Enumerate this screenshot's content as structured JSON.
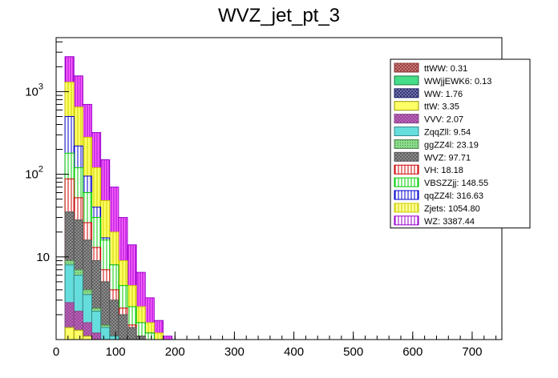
{
  "chart_data": {
    "type": "bar",
    "stacked": true,
    "title": "WVZ_jet_pt_3",
    "xlabel": "",
    "ylabel": "",
    "x_scale": "linear",
    "y_scale": "log",
    "xlim": [
      0,
      750
    ],
    "ylim": [
      1,
      4500
    ],
    "grid": false,
    "legend_position": "top-right",
    "x_ticks": [
      0,
      100,
      200,
      300,
      400,
      500,
      600,
      700
    ],
    "x_tick_labels": [
      "0",
      "100",
      "200",
      "300",
      "400",
      "500",
      "600",
      "700"
    ],
    "y_ticks": [
      10,
      100,
      1000
    ],
    "y_tick_labels": [
      "10",
      "10",
      "10"
    ],
    "y_tick_exponents": [
      "",
      "2",
      "3"
    ],
    "bin_width": 15,
    "bin_edges_start": 15,
    "stack_order": [
      "ttWW",
      "WWjjEWK6",
      "WW",
      "ttW",
      "VVV",
      "ZqqZll",
      "ggZZ4l",
      "WVZ",
      "VH",
      "VBSZZjj",
      "qqZZ4l",
      "Zjets",
      "WZ"
    ],
    "series": [
      {
        "name": "WZ",
        "legend_label": "WZ: 3387.44",
        "fill": "#ff66ff",
        "line": "#9900cc",
        "pattern": "vlines-dense",
        "cumulative": [
          2650,
          1550,
          700,
          320,
          150,
          70,
          30,
          14,
          6.5,
          3.2,
          1.7,
          1.1,
          1.0,
          1.0,
          1.0,
          1.0,
          1.0,
          1.0
        ]
      },
      {
        "name": "Zjets",
        "legend_label": "Zjets: 1054.80",
        "fill": "#ffff66",
        "line": "#cccc00",
        "pattern": "vlines",
        "cumulative": [
          1300,
          650,
          280,
          120,
          48,
          20,
          9,
          4.5,
          2.5,
          1.6,
          1.2,
          1.0,
          1.0,
          1.0,
          1.0,
          1.0,
          1.0,
          1.0
        ]
      },
      {
        "name": "qqZZ4l",
        "legend_label": "qqZZ4l: 316.63",
        "fill": "#ffffff",
        "line": "#0000cc",
        "pattern": "vlines-blue",
        "cumulative": [
          500,
          220,
          95,
          40,
          17,
          8,
          4,
          2.4,
          1.6,
          1.2,
          1.0,
          1.0,
          1.0,
          1.0,
          1.0,
          1.0,
          1.0,
          1.0
        ]
      },
      {
        "name": "VBSZZjj",
        "legend_label": "VBSZZjj: 148.55",
        "fill": "#ffffff",
        "line": "#00cc00",
        "pattern": "vlines-green",
        "cumulative": [
          180,
          120,
          60,
          30,
          16,
          8,
          4.5,
          2.5,
          1.6,
          1.2,
          1.0,
          1.0,
          1.0,
          1.0,
          1.0,
          1.0,
          1.0,
          1.0
        ]
      },
      {
        "name": "VH",
        "legend_label": "VH: 18.18",
        "fill": "#ffffff",
        "line": "#cc0000",
        "pattern": "vlines-red",
        "cumulative": [
          88,
          52,
          26,
          13,
          7,
          4,
          2.4,
          1.5,
          1.1,
          1.0,
          1.0,
          1.0,
          1.0,
          1.0,
          1.0,
          1.0,
          1.0,
          1.0
        ]
      },
      {
        "name": "WVZ",
        "legend_label": "WVZ: 97.71",
        "fill": "#999999",
        "line": "#555555",
        "pattern": "crosshatch",
        "cumulative": [
          35,
          28,
          16,
          9,
          5,
          3,
          2,
          1.4,
          1.1,
          1.0,
          1.0,
          1.0,
          1.0,
          1.0,
          1.0,
          1.0,
          1.0,
          1.0
        ]
      },
      {
        "name": "ggZZ4l",
        "legend_label": "ggZZ4l: 23.19",
        "fill": "#88dd88",
        "line": "#558855",
        "pattern": "dots",
        "cumulative": [
          9,
          7,
          4,
          2.4,
          1.5,
          1.1,
          1.0,
          1.0,
          1.0,
          1.0,
          1.0,
          1.0,
          1.0,
          1.0,
          1.0,
          1.0,
          1.0,
          1.0
        ]
      },
      {
        "name": "ZqqZll",
        "legend_label": "ZqqZll: 9.54",
        "fill": "#66dddd",
        "line": "#338888",
        "pattern": "solid",
        "cumulative": [
          8,
          6,
          3.5,
          2.2,
          1.4,
          1.1,
          1.0,
          1.0,
          1.0,
          1.0,
          1.0,
          1.0,
          1.0,
          1.0,
          1.0,
          1.0,
          1.0,
          1.0
        ]
      },
      {
        "name": "VVV",
        "legend_label": "VVV: 2.07",
        "fill": "#cc66cc",
        "line": "#884488",
        "pattern": "crosshatch-purple",
        "cumulative": [
          2.8,
          2.2,
          1.6,
          1.2,
          1.0,
          1.0,
          1.0,
          1.0,
          1.0,
          1.0,
          1.0,
          1.0,
          1.0,
          1.0,
          1.0,
          1.0,
          1.0,
          1.0
        ]
      },
      {
        "name": "ttW",
        "legend_label": "ttW: 3.35",
        "fill": "#ffff66",
        "line": "#999900",
        "pattern": "solid",
        "cumulative": [
          1.4,
          1.3,
          1.1,
          1.0,
          1.0,
          1.0,
          1.0,
          1.0,
          1.0,
          1.0,
          1.0,
          1.0,
          1.0,
          1.0,
          1.0,
          1.0,
          1.0,
          1.0
        ]
      }
    ],
    "legend": [
      {
        "label": "ttWW: 0.31",
        "fill": "#dd8888",
        "line": "#883333",
        "pattern": "crosshatch"
      },
      {
        "label": "WWjjEWK6: 0.13",
        "fill": "#44dd88",
        "line": "#227744",
        "pattern": "solid"
      },
      {
        "label": "WW: 1.76",
        "fill": "#8888bb",
        "line": "#222266",
        "pattern": "crosshatch"
      },
      {
        "label": "ttW: 3.35",
        "fill": "#ffff66",
        "line": "#999900",
        "pattern": "solid"
      },
      {
        "label": "VVV: 2.07",
        "fill": "#cc66cc",
        "line": "#884488",
        "pattern": "crosshatch"
      },
      {
        "label": "ZqqZll: 9.54",
        "fill": "#66dddd",
        "line": "#338888",
        "pattern": "solid"
      },
      {
        "label": "ggZZ4l: 23.19",
        "fill": "#88dd88",
        "line": "#558855",
        "pattern": "dots"
      },
      {
        "label": "WVZ: 97.71",
        "fill": "#999999",
        "line": "#555555",
        "pattern": "crosshatch"
      },
      {
        "label": "VH: 18.18",
        "fill": "#ffffff",
        "line": "#cc0000",
        "pattern": "vlines"
      },
      {
        "label": "VBSZZjj: 148.55",
        "fill": "#ffffff",
        "line": "#00cc00",
        "pattern": "vlines"
      },
      {
        "label": "qqZZ4l: 316.63",
        "fill": "#ffffff",
        "line": "#0000cc",
        "pattern": "vlines"
      },
      {
        "label": "Zjets: 1054.80",
        "fill": "#ffff99",
        "line": "#cccc00",
        "pattern": "vlines"
      },
      {
        "label": "WZ: 3387.44",
        "fill": "#ffffff",
        "line": "#9900cc",
        "pattern": "vlines"
      }
    ]
  }
}
